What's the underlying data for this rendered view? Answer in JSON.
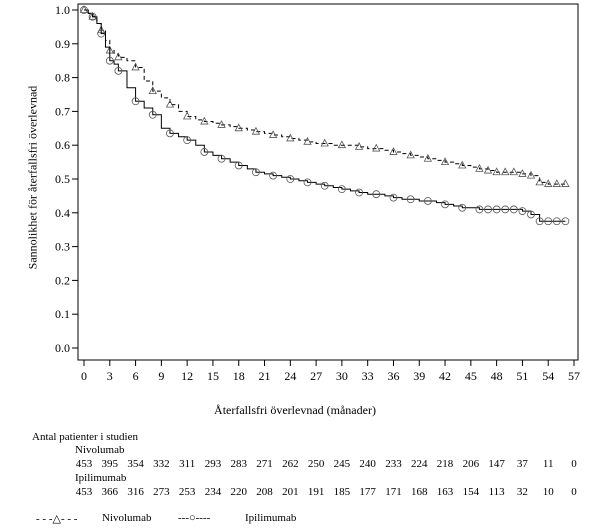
{
  "chart_data": {
    "type": "line",
    "ylabel": "Sannolikhet för återfallsfri överlevnad",
    "xlabel": "Återfallsfri överlevnad (månader)",
    "xlim": [
      0,
      57
    ],
    "ylim": [
      0.0,
      1.0
    ],
    "x_ticks": [
      "0",
      "3",
      "6",
      "9",
      "12",
      "15",
      "18",
      "21",
      "24",
      "27",
      "30",
      "33",
      "36",
      "39",
      "42",
      "45",
      "48",
      "51",
      "54",
      "57"
    ],
    "y_ticks": [
      "0.0",
      "0.1",
      "0.2",
      "0.3",
      "0.4",
      "0.5",
      "0.6",
      "0.7",
      "0.8",
      "0.9",
      "1.0"
    ],
    "grid": false,
    "series": [
      {
        "name": "Nivolumab",
        "line_style": "dashed",
        "marker": "triangle",
        "x": [
          0,
          0.5,
          1,
          1.5,
          2,
          2.5,
          3,
          3.5,
          4,
          5,
          6,
          7,
          8,
          9,
          10,
          11,
          12,
          13,
          14,
          15,
          16,
          17,
          18,
          19,
          20,
          21,
          22,
          23,
          24,
          25,
          26,
          27,
          28,
          29,
          30,
          31,
          32,
          33,
          34,
          35,
          36,
          37,
          38,
          39,
          40,
          41,
          42,
          43,
          44,
          45,
          46,
          47,
          48,
          49,
          50,
          51,
          52,
          53,
          54,
          55,
          56
        ],
        "y": [
          1.0,
          0.99,
          0.98,
          0.96,
          0.94,
          0.91,
          0.88,
          0.87,
          0.86,
          0.85,
          0.83,
          0.79,
          0.76,
          0.74,
          0.72,
          0.7,
          0.685,
          0.675,
          0.67,
          0.665,
          0.66,
          0.655,
          0.65,
          0.645,
          0.64,
          0.635,
          0.63,
          0.625,
          0.62,
          0.615,
          0.61,
          0.605,
          0.605,
          0.6,
          0.6,
          0.6,
          0.595,
          0.59,
          0.59,
          0.585,
          0.58,
          0.575,
          0.57,
          0.565,
          0.56,
          0.555,
          0.55,
          0.545,
          0.54,
          0.535,
          0.53,
          0.525,
          0.52,
          0.52,
          0.52,
          0.515,
          0.51,
          0.49,
          0.485,
          0.485,
          0.485
        ]
      },
      {
        "name": "Ipilimumab",
        "line_style": "solid",
        "marker": "circle",
        "x": [
          0,
          0.5,
          1,
          1.5,
          2,
          2.5,
          3,
          3.5,
          4,
          5,
          6,
          7,
          8,
          9,
          10,
          11,
          12,
          13,
          14,
          15,
          16,
          17,
          18,
          19,
          20,
          21,
          22,
          23,
          24,
          25,
          26,
          27,
          28,
          29,
          30,
          31,
          32,
          33,
          34,
          35,
          36,
          37,
          38,
          39,
          40,
          41,
          42,
          43,
          44,
          45,
          46,
          47,
          48,
          49,
          50,
          51,
          52,
          53,
          54,
          55,
          56
        ],
        "y": [
          1.0,
          0.99,
          0.98,
          0.96,
          0.93,
          0.89,
          0.85,
          0.84,
          0.82,
          0.77,
          0.73,
          0.71,
          0.69,
          0.65,
          0.635,
          0.625,
          0.615,
          0.6,
          0.58,
          0.57,
          0.56,
          0.55,
          0.54,
          0.53,
          0.52,
          0.515,
          0.51,
          0.505,
          0.5,
          0.495,
          0.49,
          0.485,
          0.48,
          0.475,
          0.47,
          0.465,
          0.46,
          0.455,
          0.455,
          0.45,
          0.445,
          0.44,
          0.44,
          0.435,
          0.435,
          0.43,
          0.425,
          0.42,
          0.415,
          0.415,
          0.41,
          0.41,
          0.41,
          0.41,
          0.41,
          0.405,
          0.395,
          0.375,
          0.375,
          0.375,
          0.375
        ]
      }
    ]
  },
  "risk_table": {
    "title": "Antal patienter i studien",
    "times": [
      "0",
      "3",
      "6",
      "9",
      "12",
      "15",
      "18",
      "21",
      "24",
      "27",
      "30",
      "33",
      "36",
      "39",
      "42",
      "45",
      "48",
      "51",
      "54",
      "57"
    ],
    "rows": [
      {
        "name": "Nivolumab",
        "values": [
          "453",
          "395",
          "354",
          "332",
          "311",
          "293",
          "283",
          "271",
          "262",
          "250",
          "245",
          "240",
          "233",
          "224",
          "218",
          "206",
          "147",
          "37",
          "11",
          "0"
        ],
        "positions": [
          0,
          3,
          6,
          9,
          12,
          15,
          18,
          21,
          24,
          27,
          30,
          33,
          36,
          39,
          42,
          45,
          48,
          51,
          54,
          57
        ]
      },
      {
        "name": "Ipilimumab",
        "values": [
          "453",
          "366",
          "316",
          "273",
          "253",
          "234",
          "220",
          "208",
          "201",
          "191",
          "185",
          "177",
          "171",
          "168",
          "163",
          "154",
          "113",
          "32",
          "10",
          "0"
        ],
        "positions": [
          0,
          3,
          6,
          9,
          12,
          15,
          18,
          21,
          24,
          27,
          30,
          33,
          36,
          39,
          42,
          45,
          48,
          51,
          54,
          57
        ]
      }
    ]
  },
  "legend": {
    "items": [
      {
        "symbol_text": "- - -△- - -",
        "label": "Nivolumab"
      },
      {
        "symbol_text": "---○----",
        "label": "Ipilimumab"
      }
    ]
  }
}
